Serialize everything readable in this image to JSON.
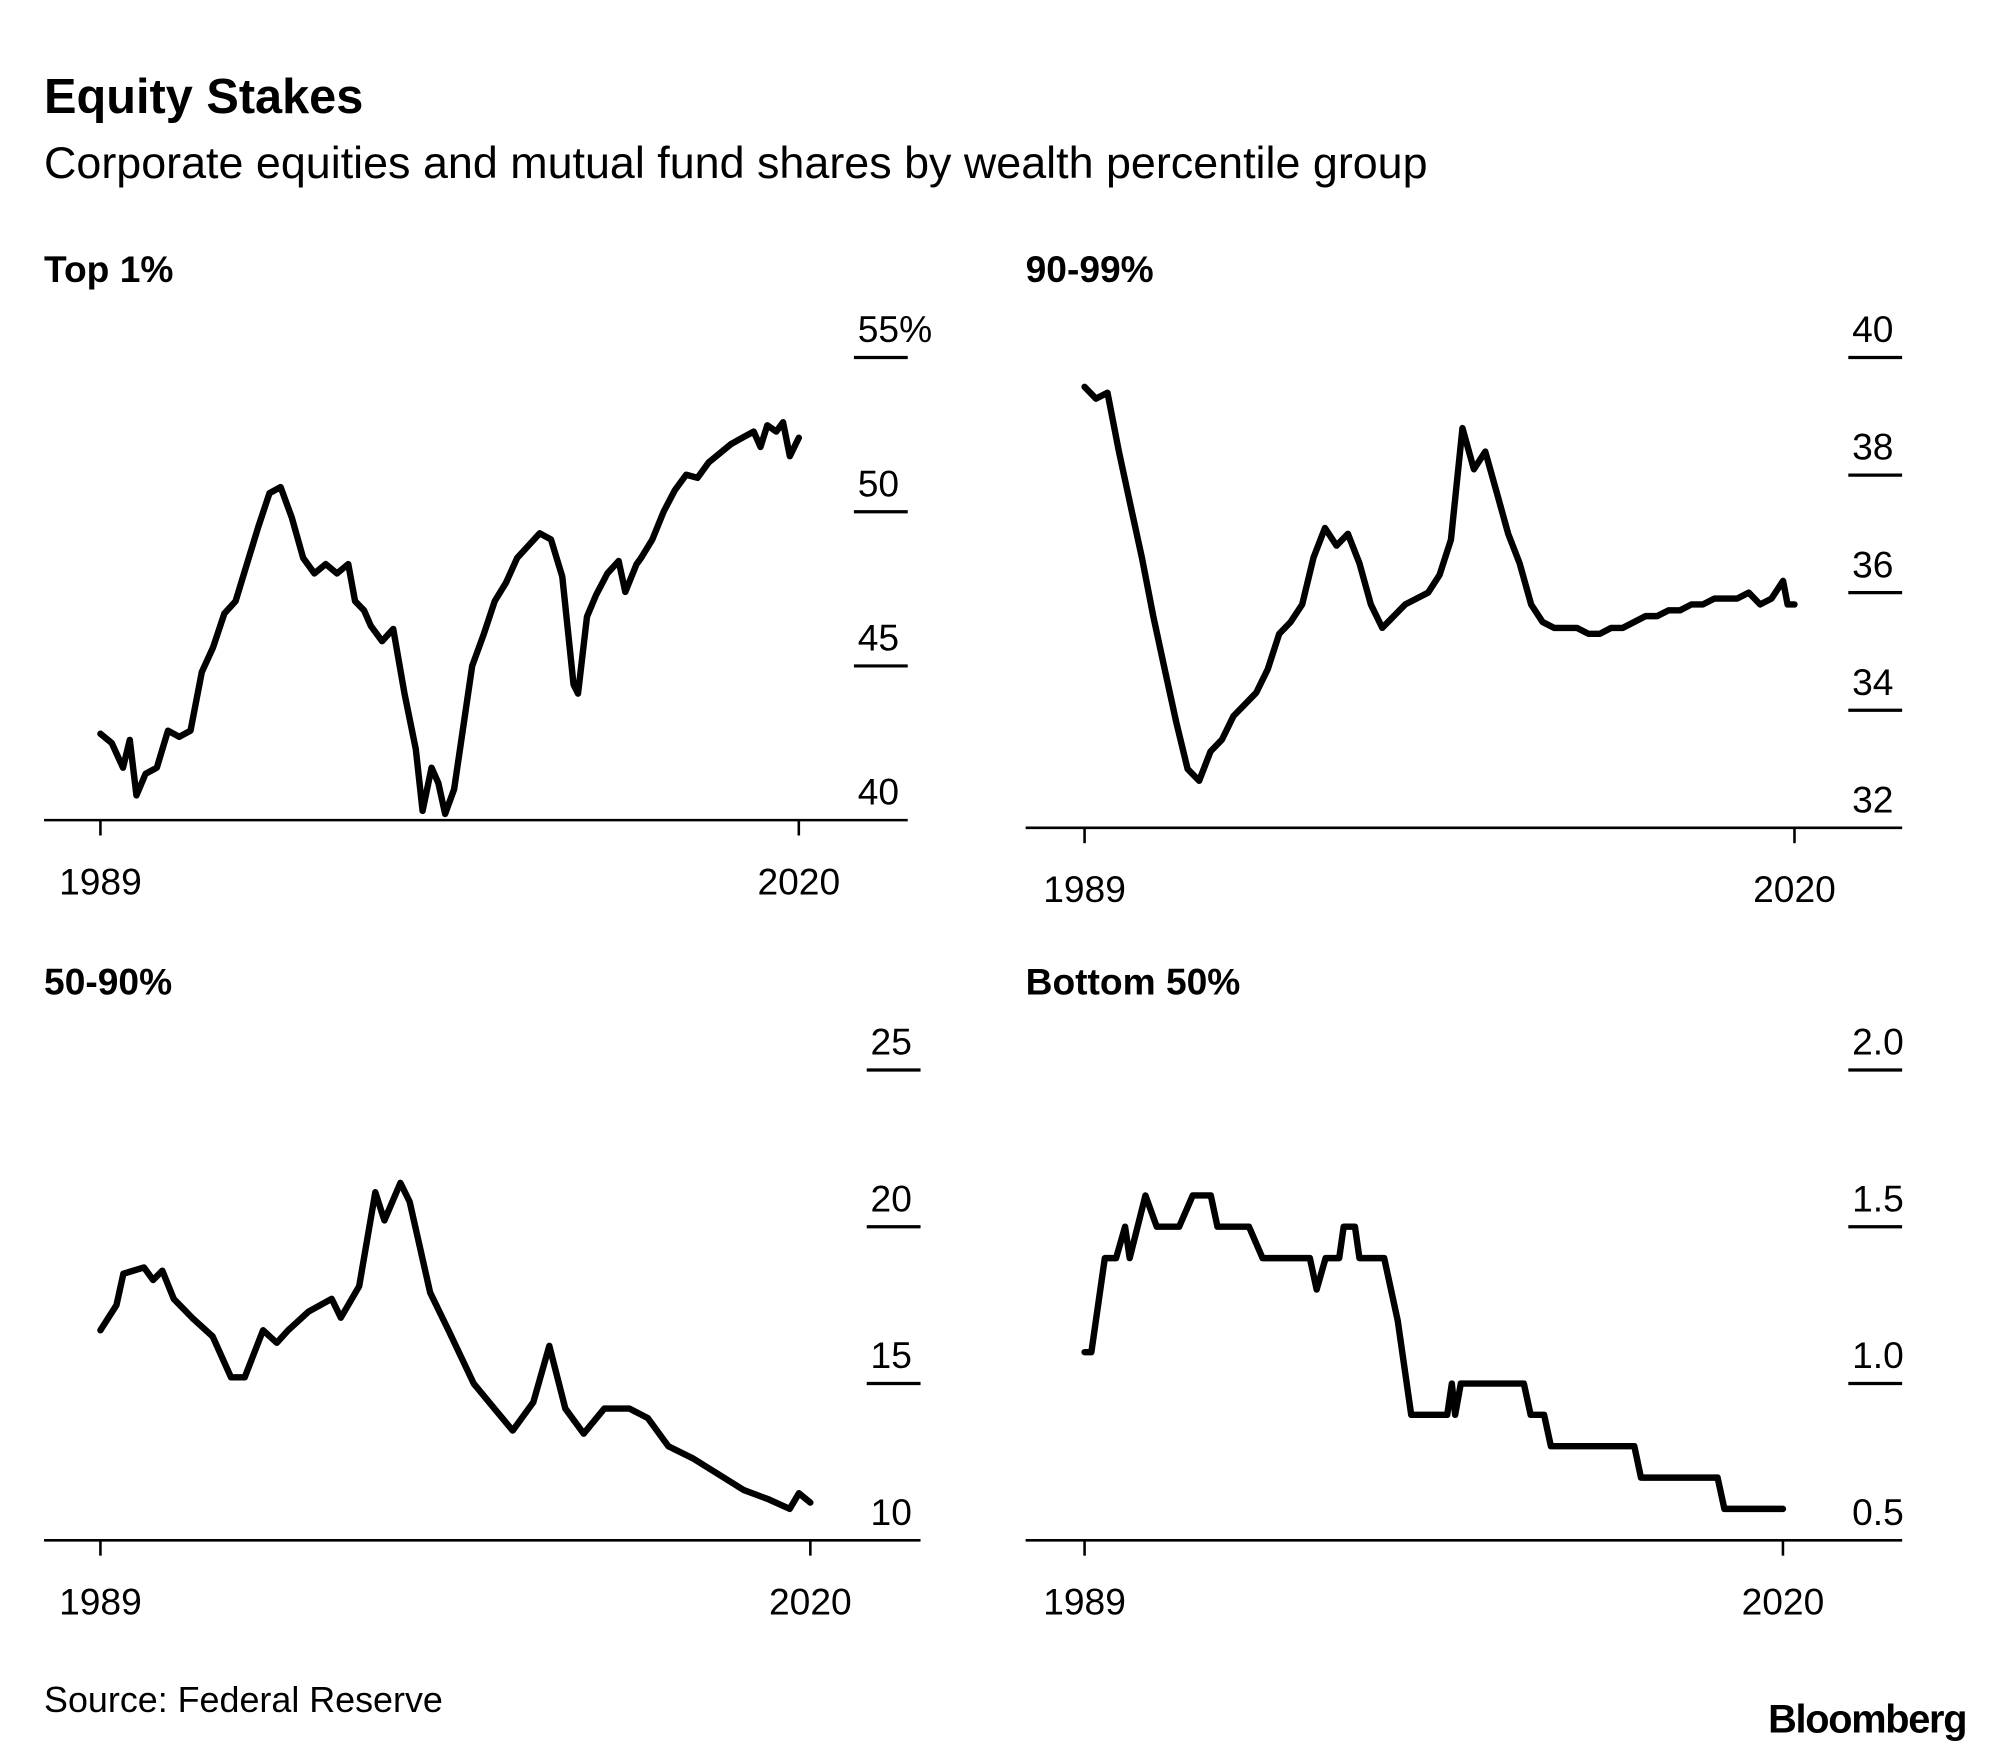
{
  "title": "Equity Stakes",
  "subtitle": "Corporate equities and mutual fund shares by wealth percentile group",
  "source": "Source: Federal Reserve",
  "logo": "Bloomberg",
  "line_color": "#000000",
  "chart_data": [
    {
      "type": "line",
      "title": "Top 1%",
      "ylim": [
        40,
        55
      ],
      "yticks": [
        40,
        45,
        50,
        55
      ],
      "ytick_labels": [
        "40",
        "45",
        "50",
        "55%"
      ],
      "xlim": [
        1989,
        2020
      ],
      "xtick_labels": [
        "1989",
        "2020"
      ],
      "grid": false,
      "points": [
        [
          1989,
          42.8
        ],
        [
          1989.5,
          42.5
        ],
        [
          1990,
          41.7
        ],
        [
          1990.3,
          42.6
        ],
        [
          1990.6,
          40.8
        ],
        [
          1991,
          41.5
        ],
        [
          1991.5,
          41.7
        ],
        [
          1992,
          42.9
        ],
        [
          1992.5,
          42.7
        ],
        [
          1993,
          42.9
        ],
        [
          1993.5,
          44.8
        ],
        [
          1994,
          45.6
        ],
        [
          1994.5,
          46.7
        ],
        [
          1995,
          47.1
        ],
        [
          1995.5,
          48.3
        ],
        [
          1996,
          49.5
        ],
        [
          1996.5,
          50.6
        ],
        [
          1997,
          50.8
        ],
        [
          1997.5,
          49.8
        ],
        [
          1998,
          48.5
        ],
        [
          1998.5,
          48.0
        ],
        [
          1999,
          48.3
        ],
        [
          1999.5,
          48.0
        ],
        [
          2000,
          48.3
        ],
        [
          2000.3,
          47.1
        ],
        [
          2000.7,
          46.8
        ],
        [
          2001,
          46.3
        ],
        [
          2001.5,
          45.8
        ],
        [
          2002,
          46.2
        ],
        [
          2002.5,
          44.1
        ],
        [
          2003,
          42.3
        ],
        [
          2003.3,
          40.3
        ],
        [
          2003.7,
          41.7
        ],
        [
          2004,
          41.2
        ],
        [
          2004.3,
          40.2
        ],
        [
          2004.7,
          41.0
        ],
        [
          2005,
          42.5
        ],
        [
          2005.5,
          45.0
        ],
        [
          2006,
          46.0
        ],
        [
          2006.5,
          47.1
        ],
        [
          2007,
          47.7
        ],
        [
          2007.5,
          48.5
        ],
        [
          2008,
          48.9
        ],
        [
          2008.5,
          49.3
        ],
        [
          2009,
          49.1
        ],
        [
          2009.5,
          47.9
        ],
        [
          2010,
          44.4
        ],
        [
          2010.2,
          44.1
        ],
        [
          2010.6,
          46.6
        ],
        [
          2011,
          47.3
        ],
        [
          2011.5,
          48.0
        ],
        [
          2012,
          48.4
        ],
        [
          2012.3,
          47.4
        ],
        [
          2012.8,
          48.3
        ],
        [
          2013,
          48.5
        ],
        [
          2013.5,
          49.1
        ],
        [
          2014,
          50.0
        ],
        [
          2014.5,
          50.7
        ],
        [
          2015,
          51.2
        ],
        [
          2015.5,
          51.1
        ],
        [
          2016,
          51.6
        ],
        [
          2016.5,
          51.9
        ],
        [
          2017,
          52.2
        ],
        [
          2017.5,
          52.4
        ],
        [
          2018,
          52.6
        ],
        [
          2018.3,
          52.1
        ],
        [
          2018.6,
          52.8
        ],
        [
          2019,
          52.6
        ],
        [
          2019.3,
          52.9
        ],
        [
          2019.6,
          51.8
        ],
        [
          2020,
          52.4
        ]
      ]
    },
    {
      "type": "line",
      "title": "90-99%",
      "ylim": [
        32,
        40
      ],
      "yticks": [
        32,
        34,
        36,
        38,
        40
      ],
      "ytick_labels": [
        "32",
        "34",
        "36",
        "38",
        "40"
      ],
      "xlim": [
        1989,
        2020
      ],
      "xtick_labels": [
        "1989",
        "2020"
      ],
      "grid": false,
      "points": [
        [
          1989,
          39.5
        ],
        [
          1989.5,
          39.3
        ],
        [
          1990,
          39.4
        ],
        [
          1990.5,
          38.4
        ],
        [
          1991,
          37.5
        ],
        [
          1991.5,
          36.6
        ],
        [
          1992,
          35.6
        ],
        [
          1992.5,
          34.7
        ],
        [
          1993,
          33.8
        ],
        [
          1993.5,
          33.0
        ],
        [
          1994,
          32.8
        ],
        [
          1994.5,
          33.3
        ],
        [
          1995,
          33.5
        ],
        [
          1995.5,
          33.9
        ],
        [
          1996,
          34.1
        ],
        [
          1996.5,
          34.3
        ],
        [
          1997,
          34.7
        ],
        [
          1997.5,
          35.3
        ],
        [
          1998,
          35.5
        ],
        [
          1998.5,
          35.8
        ],
        [
          1999,
          36.6
        ],
        [
          1999.5,
          37.1
        ],
        [
          2000,
          36.8
        ],
        [
          2000.5,
          37.0
        ],
        [
          2001,
          36.5
        ],
        [
          2001.5,
          35.8
        ],
        [
          2002,
          35.4
        ],
        [
          2002.5,
          35.6
        ],
        [
          2003,
          35.8
        ],
        [
          2003.5,
          35.9
        ],
        [
          2004,
          36.0
        ],
        [
          2004.5,
          36.3
        ],
        [
          2005,
          36.9
        ],
        [
          2005.5,
          38.8
        ],
        [
          2006,
          38.1
        ],
        [
          2006.5,
          38.4
        ],
        [
          2007,
          37.7
        ],
        [
          2007.5,
          37.0
        ],
        [
          2008,
          36.5
        ],
        [
          2008.5,
          35.8
        ],
        [
          2009,
          35.5
        ],
        [
          2009.5,
          35.4
        ],
        [
          2010,
          35.4
        ],
        [
          2010.5,
          35.4
        ],
        [
          2011,
          35.3
        ],
        [
          2011.5,
          35.3
        ],
        [
          2012,
          35.4
        ],
        [
          2012.5,
          35.4
        ],
        [
          2013,
          35.5
        ],
        [
          2013.5,
          35.6
        ],
        [
          2014,
          35.6
        ],
        [
          2014.5,
          35.7
        ],
        [
          2015,
          35.7
        ],
        [
          2015.5,
          35.8
        ],
        [
          2016,
          35.8
        ],
        [
          2016.5,
          35.9
        ],
        [
          2017,
          35.9
        ],
        [
          2017.5,
          35.9
        ],
        [
          2018,
          36.0
        ],
        [
          2018.5,
          35.8
        ],
        [
          2019,
          35.9
        ],
        [
          2019.5,
          36.2
        ],
        [
          2019.7,
          35.8
        ],
        [
          2020,
          35.8
        ]
      ]
    },
    {
      "type": "line",
      "title": "50-90%",
      "ylim": [
        10,
        25
      ],
      "yticks": [
        10,
        15,
        20,
        25
      ],
      "ytick_labels": [
        "10",
        "15",
        "20",
        "25"
      ],
      "xlim": [
        1989,
        2020
      ],
      "xtick_labels": [
        "1989",
        "2020"
      ],
      "grid": false,
      "points": [
        [
          1989,
          16.7
        ],
        [
          1989.7,
          17.5
        ],
        [
          1990,
          18.5
        ],
        [
          1990.9,
          18.7
        ],
        [
          1991.3,
          18.3
        ],
        [
          1991.7,
          18.6
        ],
        [
          1992.2,
          17.7
        ],
        [
          1993,
          17.1
        ],
        [
          1993.9,
          16.5
        ],
        [
          1994.7,
          15.2
        ],
        [
          1995.3,
          15.2
        ],
        [
          1996.1,
          16.7
        ],
        [
          1996.7,
          16.3
        ],
        [
          1997.2,
          16.7
        ],
        [
          1998.1,
          17.3
        ],
        [
          1999.1,
          17.7
        ],
        [
          1999.5,
          17.1
        ],
        [
          2000.3,
          18.1
        ],
        [
          2001,
          21.1
        ],
        [
          2001.4,
          20.2
        ],
        [
          2002.1,
          21.4
        ],
        [
          2002.5,
          20.8
        ],
        [
          2003.4,
          17.9
        ],
        [
          2004.2,
          16.7
        ],
        [
          2005.3,
          15.0
        ],
        [
          2006.2,
          14.2
        ],
        [
          2007,
          13.5
        ],
        [
          2007.9,
          14.4
        ],
        [
          2008.6,
          16.2
        ],
        [
          2009.3,
          14.2
        ],
        [
          2010.1,
          13.4
        ],
        [
          2011,
          14.2
        ],
        [
          2012.1,
          14.2
        ],
        [
          2012.9,
          13.9
        ],
        [
          2013.8,
          13.0
        ],
        [
          2014.9,
          12.6
        ],
        [
          2016,
          12.1
        ],
        [
          2017.1,
          11.6
        ],
        [
          2018.2,
          11.3
        ],
        [
          2019.1,
          11.0
        ],
        [
          2019.5,
          11.5
        ],
        [
          2020,
          11.2
        ]
      ]
    },
    {
      "type": "line",
      "title": "Bottom 50%",
      "ylim": [
        0.5,
        2.0
      ],
      "yticks": [
        0.5,
        1.0,
        1.5,
        2.0
      ],
      "ytick_labels": [
        "0.5",
        "1.0",
        "1.5",
        "2.0"
      ],
      "xlim": [
        1989,
        2020
      ],
      "xtick_labels": [
        "1989",
        "2020"
      ],
      "grid": false,
      "points": [
        [
          1989,
          1.1
        ],
        [
          1989.3,
          1.1
        ],
        [
          1989.9,
          1.4
        ],
        [
          1990.4,
          1.4
        ],
        [
          1990.8,
          1.5
        ],
        [
          1991.0,
          1.4
        ],
        [
          1991.7,
          1.6
        ],
        [
          1992.2,
          1.5
        ],
        [
          1993.2,
          1.5
        ],
        [
          1993.8,
          1.6
        ],
        [
          1994.6,
          1.6
        ],
        [
          1994.9,
          1.5
        ],
        [
          1996.3,
          1.5
        ],
        [
          1996.9,
          1.4
        ],
        [
          1999.0,
          1.4
        ],
        [
          1999.3,
          1.3
        ],
        [
          1999.7,
          1.4
        ],
        [
          2000.3,
          1.4
        ],
        [
          2000.5,
          1.5
        ],
        [
          2001.0,
          1.5
        ],
        [
          2001.2,
          1.4
        ],
        [
          2002.3,
          1.4
        ],
        [
          2002.9,
          1.2
        ],
        [
          2003.5,
          0.9
        ],
        [
          2005.1,
          0.9
        ],
        [
          2005.3,
          1.0
        ],
        [
          2005.45,
          0.9
        ],
        [
          2005.7,
          1.0
        ],
        [
          2008.5,
          1.0
        ],
        [
          2008.8,
          0.9
        ],
        [
          2009.4,
          0.9
        ],
        [
          2009.7,
          0.8
        ],
        [
          2013.4,
          0.8
        ],
        [
          2013.7,
          0.7
        ],
        [
          2017.1,
          0.7
        ],
        [
          2017.4,
          0.6
        ],
        [
          2020,
          0.6
        ]
      ]
    }
  ]
}
